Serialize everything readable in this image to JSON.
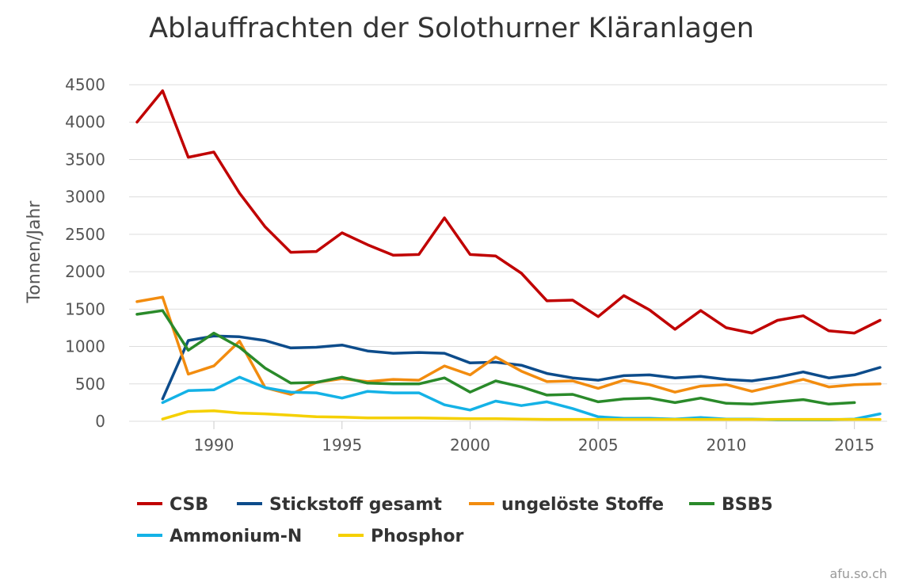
{
  "chart_data": {
    "type": "line",
    "title": "Ablauffrachten der Solothurner Kläranlagen",
    "ylabel": "Tonnen/Jahr",
    "xlabel": "",
    "ylim": [
      0,
      4500
    ],
    "xlim": [
      1987,
      2016
    ],
    "x_ticks": [
      1990,
      1995,
      2000,
      2005,
      2010,
      2015
    ],
    "y_ticks": [
      0,
      500,
      1000,
      1500,
      2000,
      2500,
      3000,
      3500,
      4000,
      4500
    ],
    "grid": true,
    "legend_position": "bottom",
    "credit": "afu.so.ch",
    "series": [
      {
        "name": "CSB",
        "color": "#c00000",
        "points": [
          [
            1987,
            4000
          ],
          [
            1988,
            4420
          ],
          [
            1989,
            3530
          ],
          [
            1990,
            3600
          ],
          [
            1991,
            3050
          ],
          [
            1992,
            2600
          ],
          [
            1993,
            2260
          ],
          [
            1994,
            2270
          ],
          [
            1995,
            2520
          ],
          [
            1996,
            2360
          ],
          [
            1997,
            2220
          ],
          [
            1998,
            2230
          ],
          [
            1999,
            2720
          ],
          [
            2000,
            2230
          ],
          [
            2001,
            2210
          ],
          [
            2002,
            1980
          ],
          [
            2003,
            1610
          ],
          [
            2004,
            1620
          ],
          [
            2005,
            1400
          ],
          [
            2006,
            1680
          ],
          [
            2007,
            1490
          ],
          [
            2008,
            1230
          ],
          [
            2009,
            1480
          ],
          [
            2010,
            1250
          ],
          [
            2011,
            1180
          ],
          [
            2012,
            1350
          ],
          [
            2013,
            1410
          ],
          [
            2014,
            1210
          ],
          [
            2015,
            1180
          ],
          [
            2016,
            1350
          ]
        ]
      },
      {
        "name": "Stickstoff gesamt",
        "color": "#0d4c8b",
        "points": [
          [
            1988,
            300
          ],
          [
            1989,
            1080
          ],
          [
            1990,
            1140
          ],
          [
            1991,
            1130
          ],
          [
            1992,
            1080
          ],
          [
            1993,
            980
          ],
          [
            1994,
            990
          ],
          [
            1995,
            1020
          ],
          [
            1996,
            940
          ],
          [
            1997,
            910
          ],
          [
            1998,
            920
          ],
          [
            1999,
            910
          ],
          [
            2000,
            780
          ],
          [
            2001,
            790
          ],
          [
            2002,
            750
          ],
          [
            2003,
            640
          ],
          [
            2004,
            580
          ],
          [
            2005,
            550
          ],
          [
            2006,
            610
          ],
          [
            2007,
            620
          ],
          [
            2008,
            580
          ],
          [
            2009,
            600
          ],
          [
            2010,
            560
          ],
          [
            2011,
            540
          ],
          [
            2012,
            590
          ],
          [
            2013,
            660
          ],
          [
            2014,
            580
          ],
          [
            2015,
            620
          ],
          [
            2016,
            720
          ]
        ]
      },
      {
        "name": "ungelöste Stoffe",
        "color": "#f28c0f",
        "points": [
          [
            1987,
            1600
          ],
          [
            1988,
            1660
          ],
          [
            1989,
            630
          ],
          [
            1990,
            740
          ],
          [
            1991,
            1070
          ],
          [
            1992,
            450
          ],
          [
            1993,
            360
          ],
          [
            1994,
            520
          ],
          [
            1995,
            570
          ],
          [
            1996,
            530
          ],
          [
            1997,
            560
          ],
          [
            1998,
            550
          ],
          [
            1999,
            740
          ],
          [
            2000,
            620
          ],
          [
            2001,
            860
          ],
          [
            2002,
            670
          ],
          [
            2003,
            530
          ],
          [
            2004,
            540
          ],
          [
            2005,
            440
          ],
          [
            2006,
            550
          ],
          [
            2007,
            490
          ],
          [
            2008,
            390
          ],
          [
            2009,
            470
          ],
          [
            2010,
            490
          ],
          [
            2011,
            400
          ],
          [
            2012,
            480
          ],
          [
            2013,
            560
          ],
          [
            2014,
            460
          ],
          [
            2015,
            490
          ],
          [
            2016,
            500
          ]
        ]
      },
      {
        "name": "BSB5",
        "color": "#2a8a2a",
        "points": [
          [
            1987,
            1430
          ],
          [
            1988,
            1480
          ],
          [
            1989,
            950
          ],
          [
            1990,
            1180
          ],
          [
            1991,
            990
          ],
          [
            1992,
            710
          ],
          [
            1993,
            510
          ],
          [
            1994,
            520
          ],
          [
            1995,
            590
          ],
          [
            1996,
            510
          ],
          [
            1997,
            500
          ],
          [
            1998,
            500
          ],
          [
            1999,
            580
          ],
          [
            2000,
            390
          ],
          [
            2001,
            540
          ],
          [
            2002,
            460
          ],
          [
            2003,
            350
          ],
          [
            2004,
            360
          ],
          [
            2005,
            260
          ],
          [
            2006,
            300
          ],
          [
            2007,
            310
          ],
          [
            2008,
            250
          ],
          [
            2009,
            310
          ],
          [
            2010,
            240
          ],
          [
            2011,
            230
          ],
          [
            2012,
            260
          ],
          [
            2013,
            290
          ],
          [
            2014,
            230
          ],
          [
            2015,
            250
          ]
        ]
      },
      {
        "name": "Ammonium-N",
        "color": "#14b2e6",
        "points": [
          [
            1988,
            250
          ],
          [
            1989,
            410
          ],
          [
            1990,
            420
          ],
          [
            1991,
            590
          ],
          [
            1992,
            450
          ],
          [
            1993,
            390
          ],
          [
            1994,
            380
          ],
          [
            1995,
            310
          ],
          [
            1996,
            400
          ],
          [
            1997,
            380
          ],
          [
            1998,
            380
          ],
          [
            1999,
            220
          ],
          [
            2000,
            150
          ],
          [
            2001,
            270
          ],
          [
            2002,
            210
          ],
          [
            2003,
            260
          ],
          [
            2004,
            170
          ],
          [
            2005,
            60
          ],
          [
            2006,
            40
          ],
          [
            2007,
            40
          ],
          [
            2008,
            30
          ],
          [
            2009,
            50
          ],
          [
            2010,
            30
          ],
          [
            2011,
            30
          ],
          [
            2012,
            20
          ],
          [
            2013,
            20
          ],
          [
            2014,
            20
          ],
          [
            2015,
            30
          ],
          [
            2016,
            100
          ]
        ]
      },
      {
        "name": "Phosphor",
        "color": "#f5d000",
        "points": [
          [
            1988,
            30
          ],
          [
            1989,
            130
          ],
          [
            1990,
            140
          ],
          [
            1991,
            110
          ],
          [
            1992,
            100
          ],
          [
            1993,
            80
          ],
          [
            1994,
            60
          ],
          [
            1995,
            55
          ],
          [
            1996,
            45
          ],
          [
            1997,
            45
          ],
          [
            1998,
            45
          ],
          [
            1999,
            40
          ],
          [
            2000,
            35
          ],
          [
            2001,
            35
          ],
          [
            2002,
            30
          ],
          [
            2003,
            25
          ],
          [
            2004,
            25
          ],
          [
            2005,
            25
          ],
          [
            2006,
            25
          ],
          [
            2007,
            25
          ],
          [
            2008,
            25
          ],
          [
            2009,
            25
          ],
          [
            2010,
            25
          ],
          [
            2011,
            25
          ],
          [
            2012,
            25
          ],
          [
            2013,
            25
          ],
          [
            2014,
            25
          ],
          [
            2015,
            25
          ],
          [
            2016,
            25
          ]
        ]
      }
    ]
  }
}
